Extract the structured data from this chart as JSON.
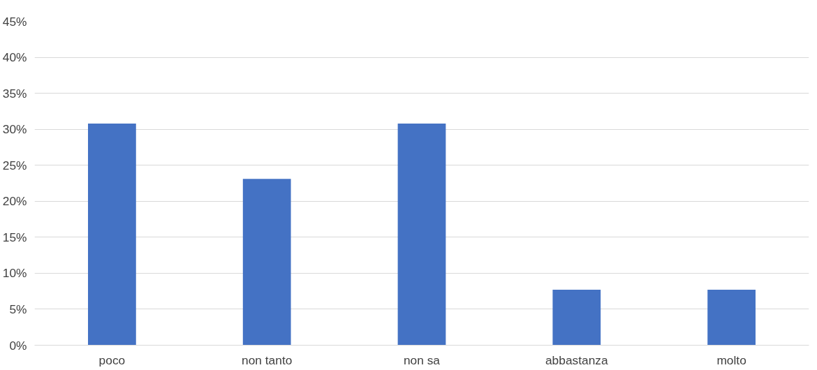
{
  "chart_data": {
    "type": "bar",
    "categories": [
      "poco",
      "non tanto",
      "non sa",
      "abbastanza",
      "molto"
    ],
    "values": [
      30.8,
      23.1,
      30.8,
      7.7,
      7.7
    ],
    "color": "#4472c4",
    "ylim": [
      0,
      45
    ],
    "yticks": [
      {
        "value": 0,
        "label": "0%"
      },
      {
        "value": 5,
        "label": "5%"
      },
      {
        "value": 10,
        "label": "10%"
      },
      {
        "value": 15,
        "label": "15%"
      },
      {
        "value": 20,
        "label": "20%"
      },
      {
        "value": 25,
        "label": "25%"
      },
      {
        "value": 30,
        "label": "30%"
      },
      {
        "value": 35,
        "label": "35%"
      },
      {
        "value": 40,
        "label": "40%"
      },
      {
        "value": 45,
        "label": "45%"
      }
    ],
    "grid": "y"
  }
}
